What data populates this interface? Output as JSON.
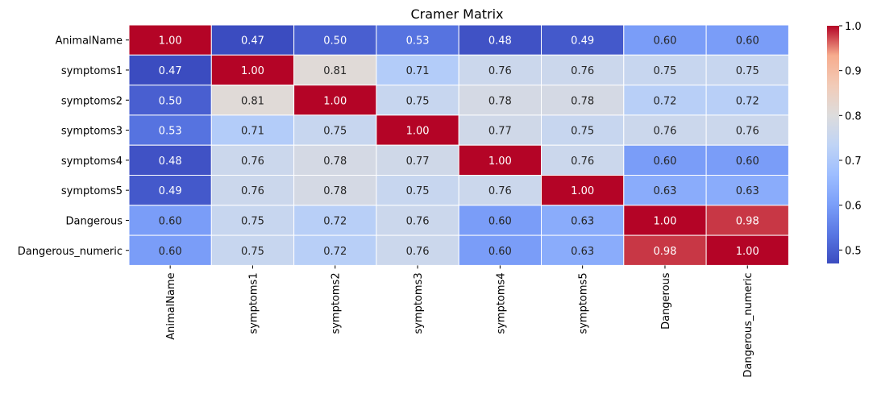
{
  "chart_data": {
    "type": "heatmap",
    "title": "Cramer Matrix",
    "xlabel": "",
    "ylabel": "",
    "row_labels": [
      "AnimalName",
      "symptoms1",
      "symptoms2",
      "symptoms3",
      "symptoms4",
      "symptoms5",
      "Dangerous",
      "Dangerous_numeric"
    ],
    "col_labels": [
      "AnimalName",
      "symptoms1",
      "symptoms2",
      "symptoms3",
      "symptoms4",
      "symptoms5",
      "Dangerous",
      "Dangerous_numeric"
    ],
    "values": [
      [
        1.0,
        0.47,
        0.5,
        0.53,
        0.48,
        0.49,
        0.6,
        0.6
      ],
      [
        0.47,
        1.0,
        0.81,
        0.71,
        0.76,
        0.76,
        0.75,
        0.75
      ],
      [
        0.5,
        0.81,
        1.0,
        0.75,
        0.78,
        0.78,
        0.72,
        0.72
      ],
      [
        0.53,
        0.71,
        0.75,
        1.0,
        0.77,
        0.75,
        0.76,
        0.76
      ],
      [
        0.48,
        0.76,
        0.78,
        0.77,
        1.0,
        0.76,
        0.6,
        0.6
      ],
      [
        0.49,
        0.76,
        0.78,
        0.75,
        0.76,
        1.0,
        0.63,
        0.63
      ],
      [
        0.6,
        0.75,
        0.72,
        0.76,
        0.6,
        0.63,
        1.0,
        0.98
      ],
      [
        0.6,
        0.75,
        0.72,
        0.76,
        0.6,
        0.63,
        0.98,
        1.0
      ]
    ],
    "colormap": "coolwarm",
    "vmin": 0.47,
    "vmax": 1.0,
    "colorbar_ticks": [
      0.5,
      0.6,
      0.7,
      0.8,
      0.9,
      1.0
    ],
    "colorbar_tick_labels": [
      "0.5",
      "0.6",
      "0.7",
      "0.8",
      "0.9",
      "1.0"
    ],
    "annotation_format": "0.00",
    "cell_border_color": "#ffffff"
  }
}
